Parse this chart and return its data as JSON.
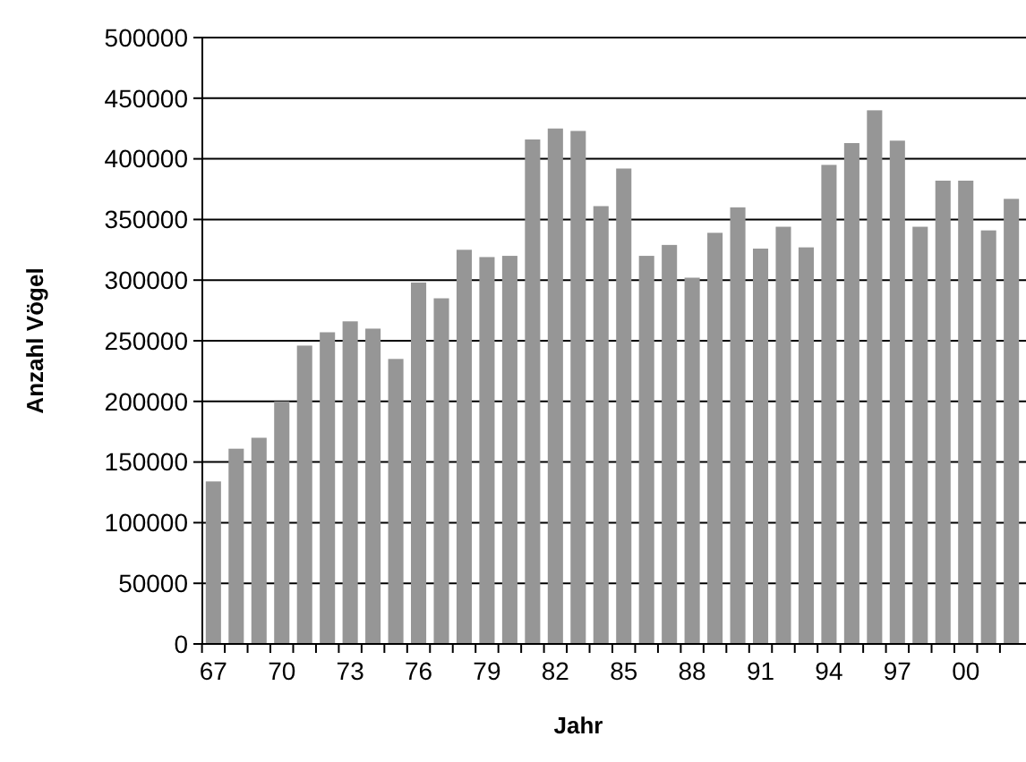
{
  "chart_data": {
    "type": "bar",
    "xlabel": "Jahr",
    "ylabel": "Anzahl Vögel",
    "categories": [
      "67",
      null,
      null,
      "70",
      null,
      null,
      "73",
      null,
      null,
      "76",
      null,
      null,
      "79",
      null,
      null,
      "82",
      null,
      null,
      "85",
      null,
      null,
      "88",
      null,
      null,
      "91",
      null,
      null,
      "94",
      null,
      null,
      "97",
      null,
      null,
      "00",
      null,
      null
    ],
    "values": [
      134000,
      161000,
      170000,
      200000,
      246000,
      257000,
      266000,
      260000,
      235000,
      298000,
      285000,
      325000,
      319000,
      320000,
      416000,
      425000,
      423000,
      361000,
      392000,
      320000,
      329000,
      302000,
      339000,
      360000,
      326000,
      344000,
      327000,
      395000,
      413000,
      440000,
      415000,
      344000,
      382000,
      382000,
      341000,
      367000
    ],
    "color": "#969696",
    "ylim": [
      0,
      500000
    ],
    "yticks": [
      0,
      50000,
      100000,
      150000,
      200000,
      250000,
      300000,
      350000,
      400000,
      450000,
      500000
    ],
    "grid": "y"
  }
}
